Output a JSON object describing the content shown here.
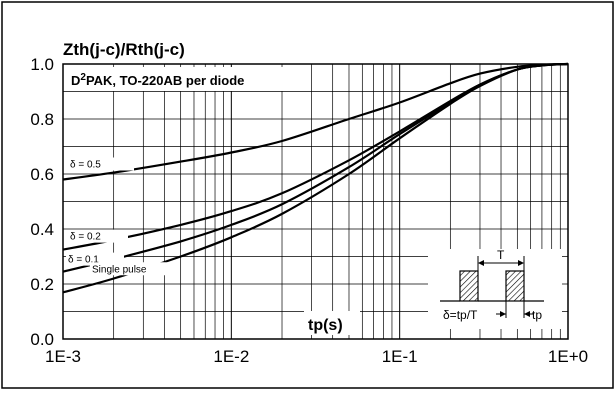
{
  "chart_data": {
    "type": "line",
    "title": "Zth(j-c)/Rth(j-c)",
    "xlabel": "tp(s)",
    "ylabel": "",
    "x_scale": "log",
    "xlim": [
      0.001,
      1
    ],
    "ylim": [
      0,
      1
    ],
    "x_ticks": [
      {
        "value": 0.001,
        "label": "1E-3"
      },
      {
        "value": 0.01,
        "label": "1E-2"
      },
      {
        "value": 0.1,
        "label": "1E-1"
      },
      {
        "value": 1,
        "label": "1E+0"
      }
    ],
    "y_ticks": [
      {
        "value": 0.0,
        "label": "0.0"
      },
      {
        "value": 0.2,
        "label": "0.2"
      },
      {
        "value": 0.4,
        "label": "0.4"
      },
      {
        "value": 0.6,
        "label": "0.6"
      },
      {
        "value": 0.8,
        "label": "0.8"
      },
      {
        "value": 1.0,
        "label": "1.0"
      }
    ],
    "grid": true,
    "package_label_pre": "D",
    "package_label_sup": "2",
    "package_label_post": "PAK, TO-220AB per diode",
    "series": [
      {
        "name": "δ = 0.5",
        "x": [
          0.001,
          0.002,
          0.005,
          0.01,
          0.02,
          0.05,
          0.1,
          0.2,
          0.3,
          0.5,
          0.7,
          1.0
        ],
        "y": [
          0.58,
          0.605,
          0.645,
          0.678,
          0.72,
          0.8,
          0.86,
          0.93,
          0.965,
          0.99,
          0.997,
          1.0
        ]
      },
      {
        "name": "δ = 0.2",
        "x": [
          0.001,
          0.002,
          0.005,
          0.01,
          0.02,
          0.05,
          0.1,
          0.2,
          0.3,
          0.5,
          0.7,
          1.0
        ],
        "y": [
          0.325,
          0.36,
          0.415,
          0.465,
          0.53,
          0.65,
          0.755,
          0.865,
          0.925,
          0.98,
          0.995,
          1.0
        ]
      },
      {
        "name": "δ = 0.1",
        "x": [
          0.001,
          0.002,
          0.005,
          0.01,
          0.02,
          0.05,
          0.1,
          0.2,
          0.3,
          0.5,
          0.7,
          1.0
        ],
        "y": [
          0.245,
          0.29,
          0.355,
          0.415,
          0.49,
          0.625,
          0.745,
          0.86,
          0.925,
          0.98,
          0.995,
          1.0
        ]
      },
      {
        "name": "Single pulse",
        "x": [
          0.001,
          0.002,
          0.005,
          0.01,
          0.02,
          0.05,
          0.1,
          0.2,
          0.3,
          0.5,
          0.7,
          1.0
        ],
        "y": [
          0.17,
          0.22,
          0.3,
          0.37,
          0.455,
          0.6,
          0.73,
          0.855,
          0.92,
          0.98,
          0.995,
          1.0
        ]
      }
    ],
    "inset": {
      "period_label": "T",
      "duty_label": "δ=tp/T",
      "pulse_label": "tp"
    }
  }
}
